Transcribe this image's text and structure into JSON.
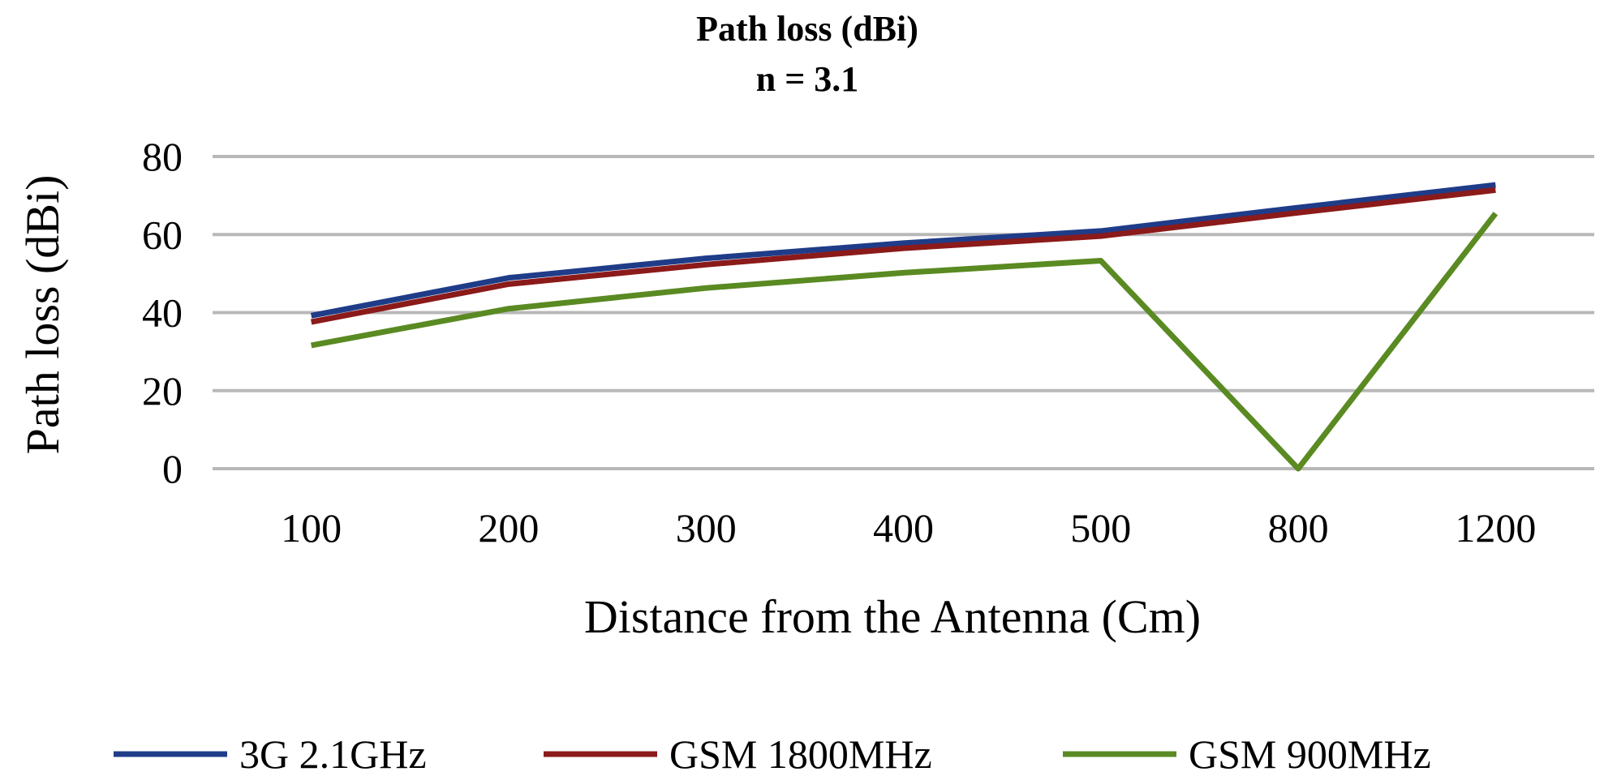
{
  "chart_data": {
    "type": "line",
    "title": "Path loss (dBi)",
    "subtitle": "n = 3.1",
    "xlabel": "Distance from the Antenna (Cm)",
    "ylabel": "Path loss (dBi)",
    "categories": [
      "100",
      "200",
      "300",
      "400",
      "500",
      "800",
      "1200"
    ],
    "ylim": [
      0,
      80
    ],
    "yticks": [
      "0",
      "20",
      "40",
      "60",
      "80"
    ],
    "grid": true,
    "legend_position": "bottom",
    "series": [
      {
        "name": "3G 2.1GHz",
        "color": "#1f3c88",
        "values": [
          39.2,
          48.9,
          53.9,
          57.8,
          60.9,
          66.9,
          72.7
        ]
      },
      {
        "name": "GSM 1800MHz",
        "color": "#8b1a1a",
        "values": [
          37.6,
          47.3,
          52.3,
          56.5,
          59.6,
          65.6,
          71.4
        ]
      },
      {
        "name": "GSM 900MHz",
        "color": "#5a8a22",
        "values": [
          31.6,
          41.0,
          46.3,
          50.2,
          53.3,
          0,
          65.4
        ]
      }
    ]
  }
}
